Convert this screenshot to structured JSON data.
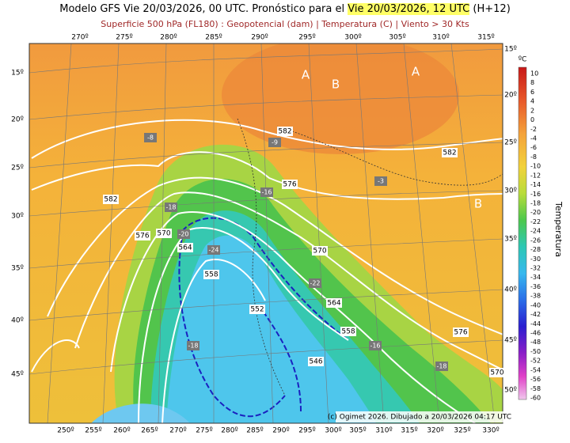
{
  "header": {
    "title_prefix": "Modelo GFS Vie 20/03/2026, 00 UTC. Pronóstico para el",
    "title_highlight": "Vie 20/03/2026, 12 UTC",
    "title_suffix": "(H+12)",
    "subtitle": "Superficie 500 hPa (FL180) : Geopotencial (dam) | Temperatura (C) | Viento > 30 Kts"
  },
  "map": {
    "top_lon_labels": [
      "270º",
      "275º",
      "280º",
      "285º",
      "290º",
      "295º",
      "300º",
      "305º",
      "310º",
      "315º"
    ],
    "bottom_lon_labels": [
      "250º",
      "255º",
      "260º",
      "265º",
      "270º",
      "275º",
      "280º",
      "285º",
      "290º",
      "295º",
      "300º",
      "305º",
      "310º",
      "315º",
      "320º",
      "325º",
      "330º"
    ],
    "left_lat_labels": [
      "15º",
      "20º",
      "25º",
      "30º",
      "35º",
      "40º",
      "45º"
    ],
    "right_lat_labels": [
      "15º",
      "20º",
      "25º",
      "30º",
      "35º",
      "40º",
      "45º",
      "50º"
    ],
    "contour_labels": [
      582,
      582,
      582,
      576,
      576,
      576,
      570,
      570,
      570,
      564,
      564,
      558,
      558,
      552,
      546
    ],
    "temperature_boxes": [
      -8,
      -9,
      -3,
      -16,
      -18,
      -20,
      -24,
      -22,
      -18,
      -16,
      -18
    ],
    "pressure_letters": [
      "A",
      "B",
      "A",
      "B"
    ],
    "credit": "(c) Ogimet 2026. Dibujado a 20/03/2026 04:17 UTC"
  },
  "colorbar": {
    "unit": "ºC",
    "title": "Temperatura",
    "labels": [
      10,
      8,
      6,
      4,
      2,
      0,
      -2,
      -4,
      -6,
      -8,
      -10,
      -12,
      -14,
      -16,
      -18,
      -20,
      -22,
      -24,
      -26,
      -28,
      -30,
      -32,
      -34,
      -36,
      -38,
      -40,
      -42,
      -44,
      -46,
      -48,
      -50,
      -52,
      -54,
      -56,
      -58,
      -60
    ]
  }
}
